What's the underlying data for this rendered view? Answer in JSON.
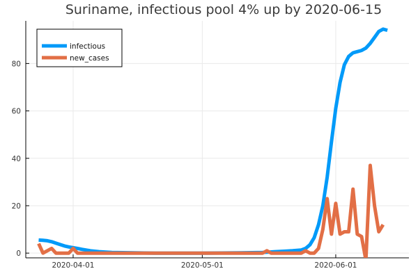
{
  "chart_data": {
    "type": "line",
    "title": "Suriname, infectious pool 4% up by 2020-06-15",
    "xlabel": "",
    "ylabel": "",
    "x_ticks": [
      "2020-04-01",
      "2020-05-01",
      "2020-06-01"
    ],
    "y_ticks": [
      0,
      20,
      40,
      60,
      80
    ],
    "xlim": [
      "2020-03-21",
      "2020-06-18"
    ],
    "ylim": [
      -2,
      98
    ],
    "grid": true,
    "legend_position": "top-left",
    "series": [
      {
        "name": "infectious",
        "color": "#009af9",
        "points": [
          [
            "2020-03-24",
            5.5
          ],
          [
            "2020-03-25",
            5.4
          ],
          [
            "2020-03-26",
            5.2
          ],
          [
            "2020-03-27",
            4.8
          ],
          [
            "2020-03-28",
            4.2
          ],
          [
            "2020-03-29",
            3.6
          ],
          [
            "2020-03-30",
            3.0
          ],
          [
            "2020-03-31",
            2.6
          ],
          [
            "2020-04-01",
            2.3
          ],
          [
            "2020-04-02",
            2.0
          ],
          [
            "2020-04-03",
            1.6
          ],
          [
            "2020-04-05",
            1.0
          ],
          [
            "2020-04-07",
            0.6
          ],
          [
            "2020-04-10",
            0.3
          ],
          [
            "2020-04-15",
            0.1
          ],
          [
            "2020-04-20",
            0.0
          ],
          [
            "2020-05-01",
            0.0
          ],
          [
            "2020-05-10",
            0.1
          ],
          [
            "2020-05-15",
            0.3
          ],
          [
            "2020-05-18",
            0.6
          ],
          [
            "2020-05-20",
            0.8
          ],
          [
            "2020-05-22",
            1.0
          ],
          [
            "2020-05-24",
            1.3
          ],
          [
            "2020-05-25",
            2.0
          ],
          [
            "2020-05-26",
            3.5
          ],
          [
            "2020-05-27",
            6.5
          ],
          [
            "2020-05-28",
            12.0
          ],
          [
            "2020-05-29",
            20.0
          ],
          [
            "2020-05-30",
            32.0
          ],
          [
            "2020-05-31",
            47.0
          ],
          [
            "2020-06-01",
            61.0
          ],
          [
            "2020-06-02",
            72.0
          ],
          [
            "2020-06-03",
            79.5
          ],
          [
            "2020-06-04",
            83.0
          ],
          [
            "2020-06-05",
            84.5
          ],
          [
            "2020-06-06",
            85.0
          ],
          [
            "2020-06-07",
            85.5
          ],
          [
            "2020-06-08",
            86.5
          ],
          [
            "2020-06-09",
            88.5
          ],
          [
            "2020-06-10",
            91.0
          ],
          [
            "2020-06-11",
            93.5
          ],
          [
            "2020-06-12",
            94.5
          ],
          [
            "2020-06-13",
            94.0
          ]
        ]
      },
      {
        "name": "new_cases",
        "color": "#e26f46",
        "points": [
          [
            "2020-03-24",
            4
          ],
          [
            "2020-03-25",
            0
          ],
          [
            "2020-03-26",
            1
          ],
          [
            "2020-03-27",
            2
          ],
          [
            "2020-03-28",
            0
          ],
          [
            "2020-03-29",
            0
          ],
          [
            "2020-03-30",
            0
          ],
          [
            "2020-03-31",
            0
          ],
          [
            "2020-04-01",
            2
          ],
          [
            "2020-04-02",
            0
          ],
          [
            "2020-04-03",
            0
          ],
          [
            "2020-04-04",
            0
          ],
          [
            "2020-05-15",
            0
          ],
          [
            "2020-05-16",
            1
          ],
          [
            "2020-05-17",
            0
          ],
          [
            "2020-05-20",
            0
          ],
          [
            "2020-05-24",
            0
          ],
          [
            "2020-05-25",
            1
          ],
          [
            "2020-05-26",
            0
          ],
          [
            "2020-05-27",
            0
          ],
          [
            "2020-05-28",
            2
          ],
          [
            "2020-05-29",
            10
          ],
          [
            "2020-05-30",
            23
          ],
          [
            "2020-05-31",
            8
          ],
          [
            "2020-06-01",
            21
          ],
          [
            "2020-06-02",
            8
          ],
          [
            "2020-06-03",
            9
          ],
          [
            "2020-06-04",
            9
          ],
          [
            "2020-06-05",
            27
          ],
          [
            "2020-06-06",
            8
          ],
          [
            "2020-06-07",
            7
          ],
          [
            "2020-06-08",
            -3
          ],
          [
            "2020-06-09",
            37
          ],
          [
            "2020-06-10",
            20
          ],
          [
            "2020-06-11",
            9
          ],
          [
            "2020-06-12",
            12
          ]
        ]
      }
    ]
  }
}
